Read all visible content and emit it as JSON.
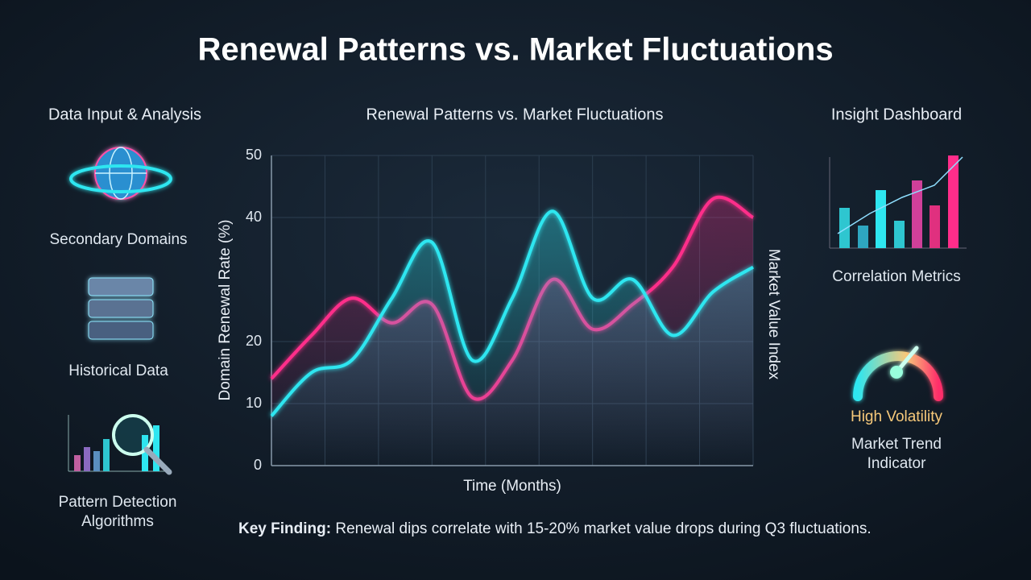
{
  "header": {
    "title": "Renewal Patterns vs. Market Fluctuations"
  },
  "left_panel": {
    "title": "Data Input & Analysis",
    "items": [
      "Secondary Domains",
      "Historical Data",
      "Pattern Detection Algorithms"
    ]
  },
  "right_panel": {
    "title": "Insight Dashboard",
    "metrics_label": "Correlation Metrics",
    "gauge_status": "High Volatility",
    "gauge_label": "Market Trend Indicator"
  },
  "footer": {
    "lead": "Key Finding:",
    "text": "Renewal dips correlate with 15-20% market value drops during Q3 fluctuations."
  },
  "chart_data": {
    "type": "line",
    "title": "Renewal Patterns vs. Market Fluctuations",
    "x_label": "Time (Months)",
    "y_label": "Domain Renewal Rate (%)",
    "y2_label": "Market Value Index",
    "categories": [
      null,
      null,
      null,
      null,
      null,
      null,
      null,
      null,
      null,
      null,
      null,
      null,
      null
    ],
    "series": [
      {
        "color": "#ff2d8a",
        "values": [
          14,
          21,
          27,
          23,
          26,
          11,
          17,
          30,
          22,
          26,
          32,
          43,
          40
        ]
      },
      {
        "color": "#2ee6f0",
        "values": [
          8,
          15,
          17,
          27,
          36,
          17,
          27,
          41,
          27,
          30,
          21,
          28,
          32
        ]
      }
    ],
    "ylim": [
      0,
      50
    ],
    "yticks": [
      0,
      10,
      20,
      40,
      50
    ],
    "grid": true
  }
}
